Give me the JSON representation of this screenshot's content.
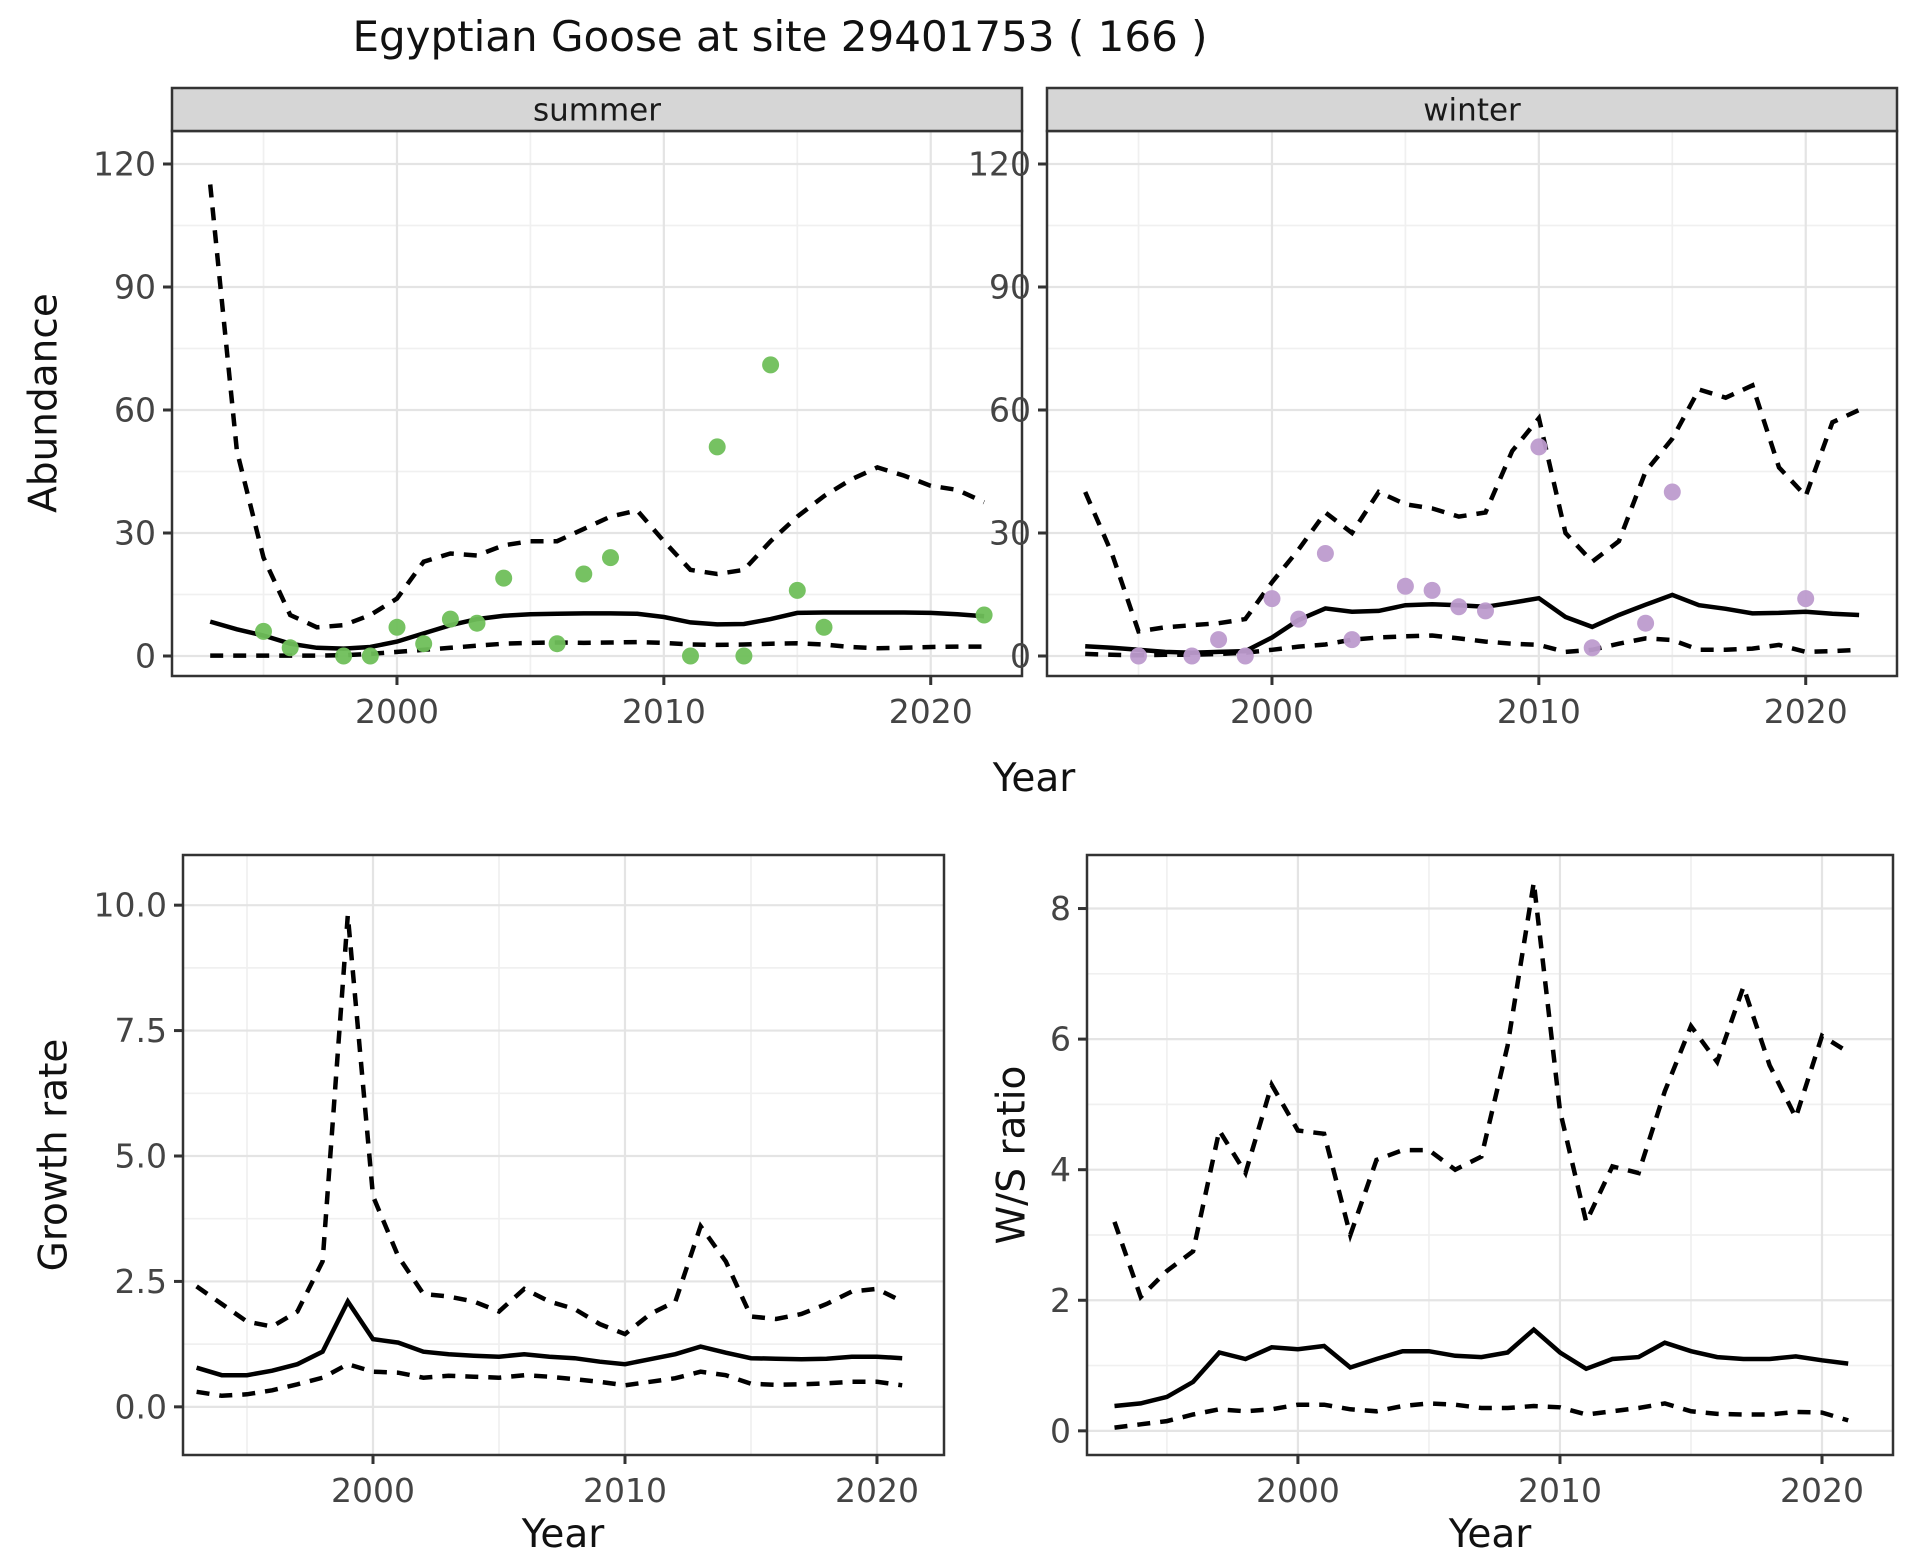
{
  "title": "Egyptian Goose at site 29401753 ( 166 )",
  "axis_titles": {
    "x": "Year",
    "y_abundance": "Abundance",
    "y_growth": "Growth rate",
    "y_ws": "W/S ratio"
  },
  "colors": {
    "summer_points": "#6fbf5a",
    "winter_points": "#bd9bcd",
    "line": "#000000",
    "panel_border": "#333333",
    "strip_fill": "#d6d6d6",
    "grid_major": "#e4e4e4",
    "grid_minor": "#f0f0f0",
    "tick_label": "#444444"
  },
  "chart_data": [
    {
      "panel": "abundance-summer",
      "type": "line+scatter",
      "facet_label": "summer",
      "xlabel": "Year",
      "ylabel": "Abundance",
      "x_ticks": [
        2000,
        2010,
        2020
      ],
      "x_tick_labels": [
        "2000",
        "2010",
        "2020"
      ],
      "x_minor": [
        1995,
        2005,
        2015
      ],
      "y_ticks": [
        0,
        30,
        60,
        90,
        120
      ],
      "y_tick_labels": [
        "0",
        "30",
        "60",
        "90",
        "120"
      ],
      "y_minor": [
        15,
        45,
        75,
        105
      ],
      "xlim": [
        1992,
        2023
      ],
      "ylim": [
        0,
        120
      ],
      "series": [
        {
          "name": "upper-ci",
          "style": "dashed",
          "x": [
            1993,
            1994,
            1995,
            1996,
            1997,
            1998,
            1999,
            2000,
            2001,
            2002,
            2003,
            2004,
            2005,
            2006,
            2007,
            2008,
            2009,
            2010,
            2011,
            2012,
            2013,
            2014,
            2015,
            2016,
            2017,
            2018,
            2019,
            2020,
            2021,
            2022
          ],
          "y": [
            115,
            50,
            24,
            10,
            7,
            7.5,
            10,
            14,
            23,
            25,
            24.5,
            27,
            28,
            28,
            31,
            34,
            35.5,
            28,
            21,
            20,
            21,
            28,
            34,
            39,
            43,
            46,
            44,
            41.5,
            40.5,
            37.5
          ]
        },
        {
          "name": "fitted",
          "style": "solid",
          "x": [
            1993,
            1994,
            1995,
            1996,
            1997,
            1998,
            1999,
            2000,
            2001,
            2002,
            2003,
            2004,
            2005,
            2006,
            2007,
            2008,
            2009,
            2010,
            2011,
            2012,
            2013,
            2014,
            2015,
            2016,
            2017,
            2018,
            2019,
            2020,
            2021,
            2022
          ],
          "y": [
            8.4,
            6.5,
            5,
            3,
            2,
            1.8,
            2.2,
            3.5,
            5.5,
            7.5,
            9,
            9.8,
            10.2,
            10.3,
            10.4,
            10.4,
            10.3,
            9.5,
            8.2,
            7.7,
            7.8,
            9,
            10.5,
            10.6,
            10.6,
            10.6,
            10.6,
            10.5,
            10.2,
            9.7
          ]
        },
        {
          "name": "lower-ci",
          "style": "dashed",
          "x": [
            1993,
            1994,
            1995,
            1996,
            1997,
            1998,
            1999,
            2000,
            2001,
            2002,
            2003,
            2004,
            2005,
            2006,
            2007,
            2008,
            2009,
            2010,
            2011,
            2012,
            2013,
            2014,
            2015,
            2016,
            2017,
            2018,
            2019,
            2020,
            2021,
            2022
          ],
          "y": [
            0.1,
            0.1,
            0.1,
            0.1,
            0.1,
            0.2,
            0.5,
            1,
            1.5,
            2,
            2.5,
            3,
            3.2,
            3.3,
            3.2,
            3.3,
            3.4,
            3.2,
            2.8,
            2.7,
            2.8,
            3,
            3.1,
            2.8,
            2.2,
            1.9,
            2,
            2.2,
            2.3,
            2.3
          ]
        }
      ],
      "points": {
        "color": "#6fbf5a",
        "x": [
          1995,
          1996,
          1998,
          1999,
          2000,
          2001,
          2002,
          2003,
          2004,
          2006,
          2007,
          2008,
          2011,
          2012,
          2013,
          2014,
          2015,
          2016,
          2022
        ],
        "y": [
          6,
          2,
          0,
          0,
          7,
          3,
          9,
          8,
          19,
          3,
          20,
          24,
          0,
          51,
          0,
          71,
          16,
          7,
          10
        ]
      }
    },
    {
      "panel": "abundance-winter",
      "type": "line+scatter",
      "facet_label": "winter",
      "xlabel": "Year",
      "ylabel": "Abundance",
      "x_ticks": [
        2000,
        2010,
        2020
      ],
      "x_tick_labels": [
        "2000",
        "2010",
        "2020"
      ],
      "x_minor": [
        1995,
        2005,
        2015
      ],
      "y_ticks": [
        0,
        30,
        60,
        90,
        120
      ],
      "y_tick_labels": [
        "0",
        "30",
        "60",
        "90",
        "120"
      ],
      "y_minor": [
        15,
        45,
        75,
        105
      ],
      "xlim": [
        1992,
        2023
      ],
      "ylim": [
        0,
        120
      ],
      "series": [
        {
          "name": "upper-ci",
          "style": "dashed",
          "x": [
            1993,
            1994,
            1995,
            1996,
            1997,
            1998,
            1999,
            2000,
            2001,
            2002,
            2003,
            2004,
            2005,
            2006,
            2007,
            2008,
            2009,
            2010,
            2011,
            2012,
            2013,
            2014,
            2015,
            2016,
            2017,
            2018,
            2019,
            2020,
            2021,
            2022
          ],
          "y": [
            40,
            25,
            6,
            7,
            7.5,
            8,
            9,
            18,
            26,
            35,
            30,
            40,
            37,
            36,
            34,
            35,
            50,
            58,
            30,
            23,
            28,
            45,
            53,
            65,
            63,
            66,
            46,
            39,
            57,
            60
          ]
        },
        {
          "name": "fitted",
          "style": "solid",
          "x": [
            1993,
            1994,
            1995,
            1996,
            1997,
            1998,
            1999,
            2000,
            2001,
            2002,
            2003,
            2004,
            2005,
            2006,
            2007,
            2008,
            2009,
            2010,
            2011,
            2012,
            2013,
            2014,
            2015,
            2016,
            2017,
            2018,
            2019,
            2020,
            2021,
            2022
          ],
          "y": [
            2.4,
            2,
            1.5,
            1,
            0.8,
            1,
            1.2,
            4.5,
            8.8,
            11.6,
            10.8,
            11,
            12.4,
            12.6,
            12.4,
            12,
            13,
            14.1,
            9.5,
            7.1,
            10,
            12.5,
            14.9,
            12.4,
            11.5,
            10.4,
            10.5,
            10.8,
            10.3,
            10
          ]
        },
        {
          "name": "lower-ci",
          "style": "dashed",
          "x": [
            1993,
            1994,
            1995,
            1996,
            1997,
            1998,
            1999,
            2000,
            2001,
            2002,
            2003,
            2004,
            2005,
            2006,
            2007,
            2008,
            2009,
            2010,
            2011,
            2012,
            2013,
            2014,
            2015,
            2016,
            2017,
            2018,
            2019,
            2020,
            2021,
            2022
          ],
          "y": [
            0.5,
            0.3,
            0.2,
            0.3,
            0.3,
            0.5,
            0.8,
            1.5,
            2.3,
            2.8,
            4,
            4.5,
            4.8,
            5,
            4.3,
            3.5,
            3,
            2.7,
            1,
            1.5,
            3,
            4.3,
            3.9,
            1.5,
            1.5,
            1.8,
            2.7,
            1,
            1.2,
            1.5
          ]
        }
      ],
      "points": {
        "color": "#bd9bcd",
        "x": [
          1995,
          1997,
          1998,
          1999,
          2000,
          2001,
          2002,
          2003,
          2005,
          2006,
          2007,
          2008,
          2010,
          2012,
          2014,
          2015,
          2020
        ],
        "y": [
          0,
          0,
          4,
          0,
          14,
          9,
          25,
          4,
          17,
          16,
          12,
          11,
          51,
          2,
          8,
          40,
          14
        ]
      }
    },
    {
      "panel": "growth-rate",
      "type": "line",
      "facet_label": "",
      "xlabel": "Year",
      "ylabel": "Growth rate",
      "x_ticks": [
        2000,
        2010,
        2020
      ],
      "x_tick_labels": [
        "2000",
        "2010",
        "2020"
      ],
      "x_minor": [
        1995,
        2005,
        2015
      ],
      "y_ticks": [
        0,
        2.5,
        5,
        7.5,
        10
      ],
      "y_tick_labels": [
        "0.0",
        "2.5",
        "5.0",
        "7.5",
        "10.0"
      ],
      "y_minor": [
        1.25,
        3.75,
        6.25,
        8.75
      ],
      "xlim": [
        1992,
        2023
      ],
      "ylim": [
        0,
        10
      ],
      "series": [
        {
          "name": "upper-ci",
          "style": "dashed",
          "x": [
            1993,
            1994,
            1995,
            1996,
            1997,
            1998,
            1999,
            2000,
            2001,
            2002,
            2003,
            2004,
            2005,
            2006,
            2007,
            2008,
            2009,
            2010,
            2011,
            2012,
            2013,
            2014,
            2015,
            2016,
            2017,
            2018,
            2019,
            2020,
            2021
          ],
          "y": [
            2.4,
            2.05,
            1.7,
            1.6,
            1.9,
            2.9,
            9.8,
            4.2,
            3,
            2.25,
            2.2,
            2.1,
            1.9,
            2.35,
            2.1,
            1.95,
            1.65,
            1.45,
            1.85,
            2.1,
            3.6,
            2.9,
            1.8,
            1.75,
            1.85,
            2.05,
            2.3,
            2.35,
            2.1
          ]
        },
        {
          "name": "fitted",
          "style": "solid",
          "x": [
            1993,
            1994,
            1995,
            1996,
            1997,
            1998,
            1999,
            2000,
            2001,
            2002,
            2003,
            2004,
            2005,
            2006,
            2007,
            2008,
            2009,
            2010,
            2011,
            2012,
            2013,
            2014,
            2015,
            2016,
            2017,
            2018,
            2019,
            2020,
            2021
          ],
          "y": [
            0.78,
            0.63,
            0.63,
            0.72,
            0.85,
            1.1,
            2.1,
            1.35,
            1.28,
            1.1,
            1.05,
            1.02,
            1,
            1.05,
            1,
            0.97,
            0.9,
            0.85,
            0.95,
            1.05,
            1.2,
            1.08,
            0.97,
            0.96,
            0.95,
            0.96,
            1,
            1,
            0.97
          ]
        },
        {
          "name": "lower-ci",
          "style": "dashed",
          "x": [
            1993,
            1994,
            1995,
            1996,
            1997,
            1998,
            1999,
            2000,
            2001,
            2002,
            2003,
            2004,
            2005,
            2006,
            2007,
            2008,
            2009,
            2010,
            2011,
            2012,
            2013,
            2014,
            2015,
            2016,
            2017,
            2018,
            2019,
            2020,
            2021
          ],
          "y": [
            0.3,
            0.22,
            0.25,
            0.33,
            0.45,
            0.58,
            0.85,
            0.7,
            0.68,
            0.58,
            0.62,
            0.6,
            0.58,
            0.63,
            0.6,
            0.55,
            0.5,
            0.43,
            0.5,
            0.57,
            0.7,
            0.63,
            0.46,
            0.44,
            0.45,
            0.47,
            0.5,
            0.5,
            0.43
          ]
        }
      ],
      "points": null
    },
    {
      "panel": "ws-ratio",
      "type": "line",
      "facet_label": "",
      "xlabel": "Year",
      "ylabel": "W/S ratio",
      "x_ticks": [
        2000,
        2010,
        2020
      ],
      "x_tick_labels": [
        "2000",
        "2010",
        "2020"
      ],
      "x_minor": [
        1995,
        2005,
        2015
      ],
      "y_ticks": [
        0,
        2,
        4,
        6,
        8
      ],
      "y_tick_labels": [
        "0",
        "2",
        "4",
        "6",
        "8"
      ],
      "y_minor": [
        1,
        3,
        5,
        7
      ],
      "xlim": [
        1992,
        2023
      ],
      "ylim": [
        0,
        8.4
      ],
      "series": [
        {
          "name": "upper-ci",
          "style": "dashed",
          "x": [
            1993,
            1994,
            1995,
            1996,
            1997,
            1998,
            1999,
            2000,
            2001,
            2002,
            2003,
            2004,
            2005,
            2006,
            2007,
            2008,
            2009,
            2010,
            2011,
            2012,
            2013,
            2014,
            2015,
            2016,
            2017,
            2018,
            2019,
            2020,
            2021
          ],
          "y": [
            3.2,
            2.05,
            2.45,
            2.75,
            4.6,
            3.95,
            5.3,
            4.6,
            4.55,
            3,
            4.15,
            4.3,
            4.3,
            4,
            4.2,
            5.9,
            8.4,
            4.9,
            3.2,
            4.05,
            3.95,
            5.2,
            6.2,
            5.65,
            6.8,
            5.6,
            4.8,
            6.05,
            5.8
          ]
        },
        {
          "name": "fitted",
          "style": "solid",
          "x": [
            1993,
            1994,
            1995,
            1996,
            1997,
            1998,
            1999,
            2000,
            2001,
            2002,
            2003,
            2004,
            2005,
            2006,
            2007,
            2008,
            2009,
            2010,
            2011,
            2012,
            2013,
            2014,
            2015,
            2016,
            2017,
            2018,
            2019,
            2020,
            2021
          ],
          "y": [
            0.38,
            0.42,
            0.52,
            0.75,
            1.2,
            1.1,
            1.28,
            1.25,
            1.3,
            0.97,
            1.1,
            1.22,
            1.22,
            1.15,
            1.13,
            1.2,
            1.55,
            1.2,
            0.95,
            1.1,
            1.13,
            1.35,
            1.22,
            1.13,
            1.1,
            1.1,
            1.14,
            1.08,
            1.03
          ]
        },
        {
          "name": "lower-ci",
          "style": "dashed",
          "x": [
            1993,
            1994,
            1995,
            1996,
            1997,
            1998,
            1999,
            2000,
            2001,
            2002,
            2003,
            2004,
            2005,
            2006,
            2007,
            2008,
            2009,
            2010,
            2011,
            2012,
            2013,
            2014,
            2015,
            2016,
            2017,
            2018,
            2019,
            2020,
            2021
          ],
          "y": [
            0.05,
            0.1,
            0.15,
            0.25,
            0.33,
            0.3,
            0.33,
            0.4,
            0.4,
            0.33,
            0.3,
            0.38,
            0.42,
            0.4,
            0.35,
            0.35,
            0.38,
            0.36,
            0.25,
            0.3,
            0.35,
            0.42,
            0.3,
            0.26,
            0.25,
            0.25,
            0.29,
            0.28,
            0.16
          ]
        }
      ],
      "points": null
    }
  ]
}
